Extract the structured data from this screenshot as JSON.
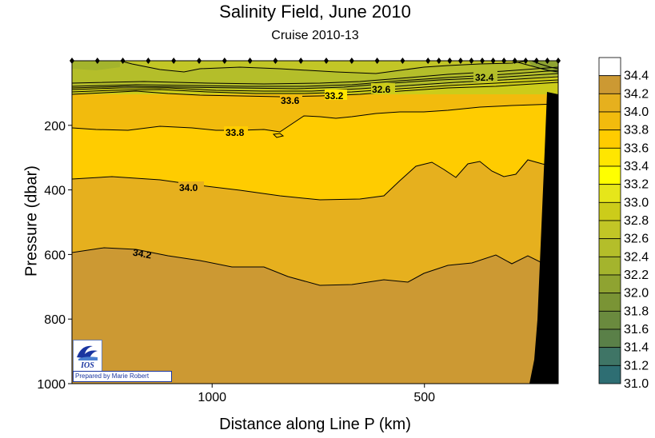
{
  "chart_data": {
    "type": "heatmap",
    "title": "Salinity Field,  June 2010",
    "subtitle": "Cruise 2010-13",
    "xlabel": "Distance along Line P  (km)",
    "ylabel": "Pressure  (dbar)",
    "xlim": [
      1330,
      185
    ],
    "ylim": [
      1000,
      0
    ],
    "x_ticks": [
      {
        "value": 1000,
        "label": "1000"
      },
      {
        "value": 500,
        "label": "500"
      }
    ],
    "y_ticks": [
      {
        "value": 200,
        "label": "200"
      },
      {
        "value": 400,
        "label": "400"
      },
      {
        "value": 600,
        "label": "600"
      },
      {
        "value": 800,
        "label": "800"
      },
      {
        "value": 1000,
        "label": "1000"
      }
    ],
    "colorbar_levels": [
      "34.4",
      "34.2",
      "34.0",
      "33.8",
      "33.6",
      "33.4",
      "33.2",
      "33.0",
      "32.8",
      "32.6",
      "32.4",
      "32.2",
      "32.0",
      "31.8",
      "31.6",
      "31.4",
      "31.2",
      "31.0"
    ],
    "colorbar_colors": [
      "#ffffff",
      "#cc9933",
      "#e6b01e",
      "#f2bb0d",
      "#ffcc00",
      "#ffe600",
      "#ffff00",
      "#e6e61a",
      "#cccc1a",
      "#c2c626",
      "#b4be2a",
      "#a4b42d",
      "#8fa331",
      "#7a9435",
      "#6a8a3e",
      "#5a8048",
      "#3f7566",
      "#2e6e73"
    ],
    "contour_labels": [
      "33.6",
      "33.2",
      "32.6",
      "32.4",
      "33.8",
      "34.0",
      "34.2"
    ],
    "stations_count": 27
  },
  "logo": {
    "text": "IOS",
    "credit": "Prepared by Marie Robert"
  }
}
